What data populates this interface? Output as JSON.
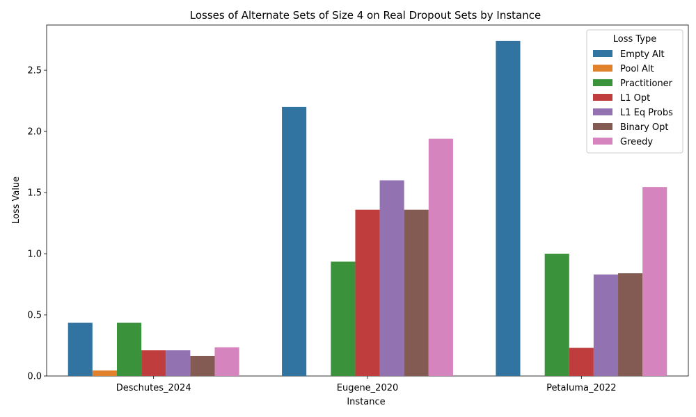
{
  "chart_data": {
    "type": "bar",
    "title": "Losses of Alternate Sets of Size 4 on Real Dropout Sets by Instance",
    "xlabel": "Instance",
    "ylabel": "Loss Value",
    "categories": [
      "Deschutes_2024",
      "Eugene_2020",
      "Petaluma_2022"
    ],
    "ylim": [
      0,
      2.87
    ],
    "yticks": [
      "0.0",
      "0.5",
      "1.0",
      "1.5",
      "2.0",
      "2.5"
    ],
    "grid": false,
    "legend": {
      "title": "Loss Type",
      "placement": "top-right"
    },
    "series": [
      {
        "name": "Empty Alt",
        "color": "#3274a1",
        "values": [
          0.435,
          2.2,
          2.74
        ]
      },
      {
        "name": "Pool Alt",
        "color": "#e1812c",
        "values": [
          0.045,
          0.0,
          0.0
        ]
      },
      {
        "name": "Practitioner",
        "color": "#3a923a",
        "values": [
          0.435,
          0.935,
          1.0
        ]
      },
      {
        "name": "L1 Opt",
        "color": "#c03d3e",
        "values": [
          0.21,
          1.36,
          0.23
        ]
      },
      {
        "name": "L1 Eq Probs",
        "color": "#9372b2",
        "values": [
          0.21,
          1.6,
          0.83
        ]
      },
      {
        "name": "Binary Opt",
        "color": "#845b53",
        "values": [
          0.165,
          1.36,
          0.84
        ]
      },
      {
        "name": "Greedy",
        "color": "#d684bd",
        "values": [
          0.235,
          1.94,
          1.545
        ]
      }
    ]
  }
}
